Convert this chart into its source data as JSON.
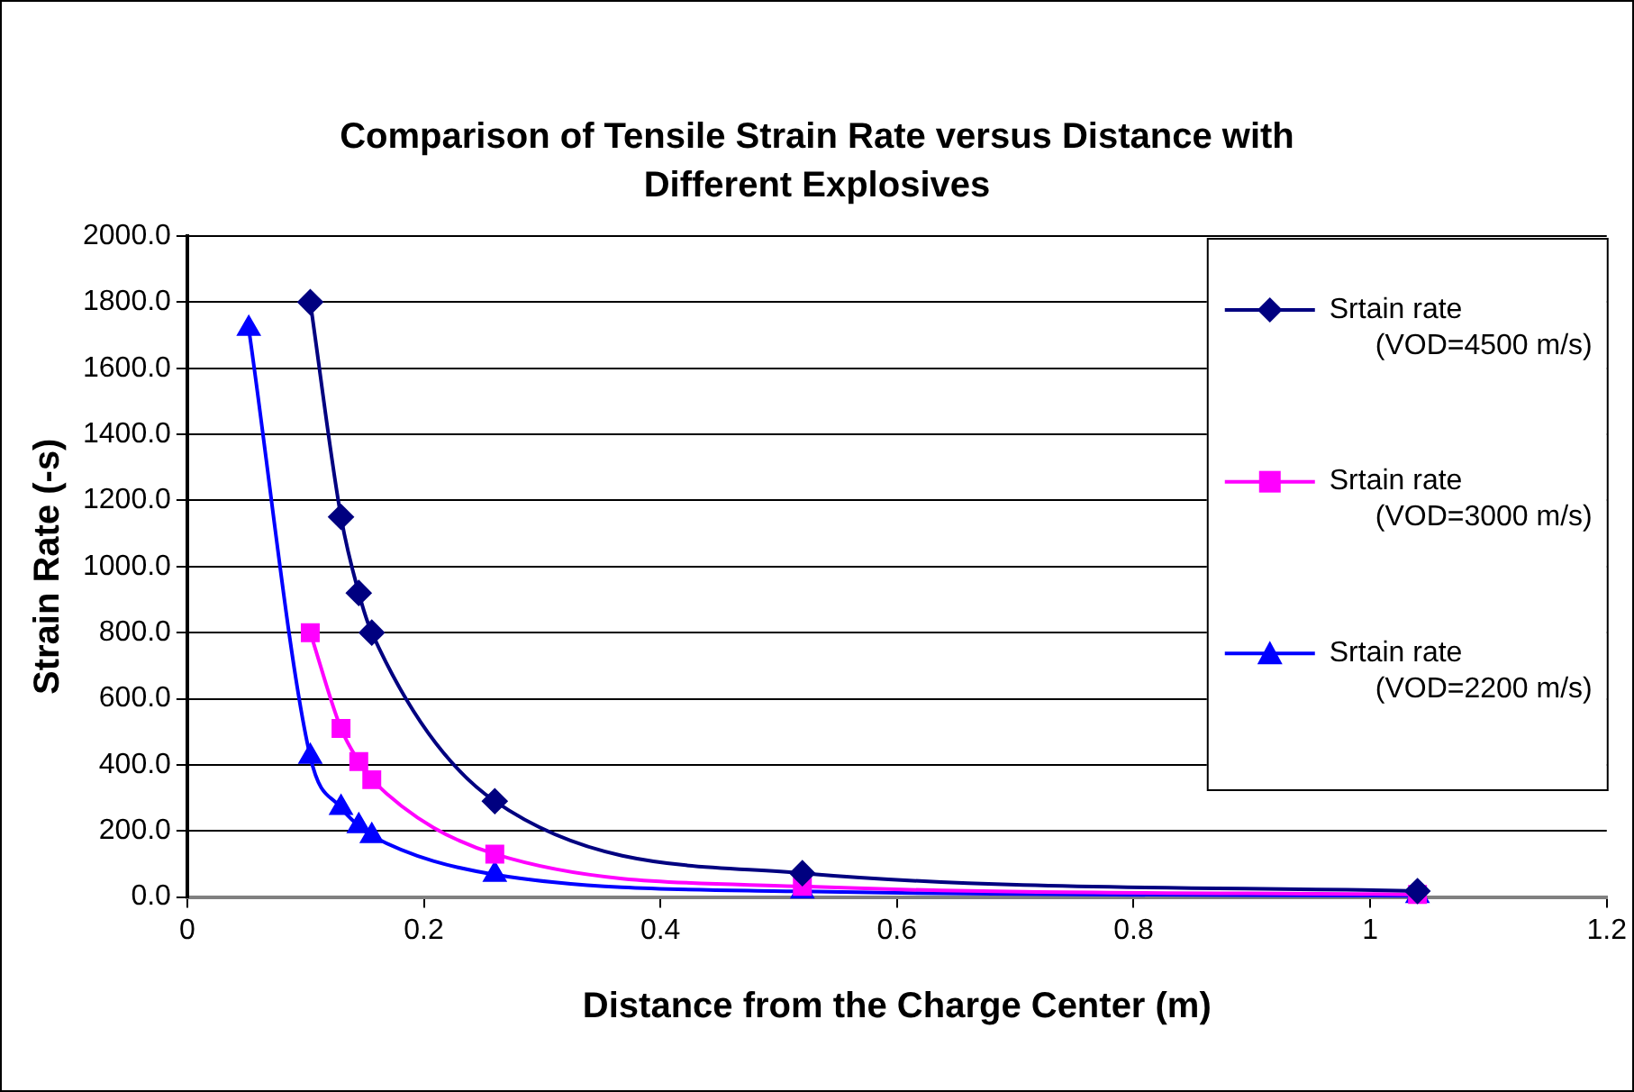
{
  "chart_data": {
    "type": "line",
    "title": "Comparison of Tensile Strain Rate versus Distance with Different Explosives",
    "xlabel": "Distance from the Charge Center (m)",
    "ylabel": "Strain Rate (-s)",
    "xlim": [
      0,
      1.2
    ],
    "xticks": [
      0,
      0.2,
      0.4,
      0.6,
      0.8,
      1,
      1.2
    ],
    "ylim": [
      0,
      2000
    ],
    "yticks": [
      {
        "value": 0,
        "label": "0.0"
      },
      {
        "value": 200,
        "label": "200.0"
      },
      {
        "value": 400,
        "label": "400.0"
      },
      {
        "value": 600,
        "label": "600.0"
      },
      {
        "value": 800,
        "label": "800.0"
      },
      {
        "value": 1000,
        "label": "1000.0"
      },
      {
        "value": 1200,
        "label": "1200.0"
      },
      {
        "value": 1400,
        "label": "1400.0"
      },
      {
        "value": 1600,
        "label": "1600.0"
      },
      {
        "value": 1800,
        "label": "1800.0"
      },
      {
        "value": 2000,
        "label": "2000.0"
      }
    ],
    "grid": "y",
    "legend": "top right",
    "line_style": "solid",
    "series": [
      {
        "name": "Srtain rate (VOD=4500 m/s)",
        "color": "#000080",
        "marker": "diamond",
        "x": [
          0.104,
          0.13,
          0.145,
          0.156,
          0.26,
          0.52,
          1.04
        ],
        "values": [
          1800,
          1150,
          920,
          800,
          290,
          72,
          18
        ]
      },
      {
        "name": "Srtain rate (VOD=3000 m/s)",
        "color": "#ff00ff",
        "marker": "square",
        "x": [
          0.104,
          0.13,
          0.145,
          0.156,
          0.26,
          0.52,
          1.04
        ],
        "values": [
          800,
          510,
          410,
          355,
          130,
          32,
          8
        ]
      },
      {
        "name": "Srtain rate (VOD=2200 m/s)",
        "color": "#0000ff",
        "marker": "triangle",
        "x": [
          0.052,
          0.104,
          0.13,
          0.145,
          0.156,
          0.26,
          0.52,
          1.04
        ],
        "values": [
          1720,
          425,
          270,
          215,
          185,
          68,
          17,
          4
        ]
      }
    ]
  }
}
